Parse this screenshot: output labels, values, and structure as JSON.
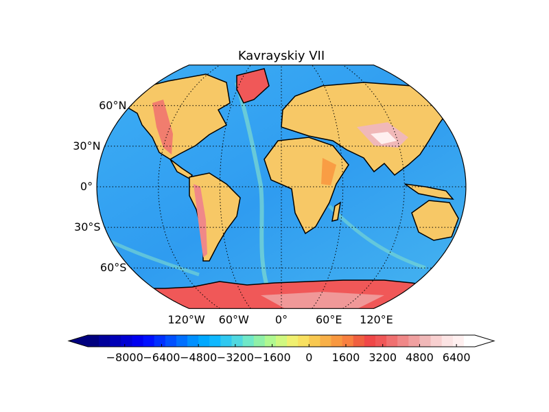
{
  "map": {
    "title": "Kavrayskiy VII",
    "projection": "kavrayskiy-vii",
    "graticule_style": "dotted",
    "lat_labels": [
      "60°N",
      "30°N",
      "0°",
      "30°S",
      "60°S"
    ],
    "lat_values": [
      60,
      30,
      0,
      -30,
      -60
    ],
    "lon_labels": [
      "120°W",
      "60°W",
      "0°",
      "60°E",
      "120°E"
    ],
    "lon_values": [
      -120,
      -60,
      0,
      60,
      120
    ],
    "ocean_color": "#2f9cf0",
    "land_color": "#f7c866",
    "high_terrain_color": "#f25050",
    "ice_color": "#f07070",
    "coastline_color": "#000000"
  },
  "colorbar": {
    "ticks": [
      "−8000",
      "−6400",
      "−4800",
      "−3200",
      "−1600",
      "0",
      "1600",
      "3200",
      "4800",
      "6400"
    ],
    "tick_values": [
      -8000,
      -6400,
      -4800,
      -3200,
      -1600,
      0,
      1600,
      3200,
      4800,
      6400
    ],
    "min": -9600,
    "max": 7200,
    "extend": "both",
    "colors": [
      "#00007f",
      "#00009b",
      "#0000b7",
      "#0000d3",
      "#0000f0",
      "#0010ff",
      "#0030ff",
      "#0050ff",
      "#0070ff",
      "#0090ff",
      "#00a8ff",
      "#10b8ff",
      "#30c8f0",
      "#50d8e0",
      "#70e8c8",
      "#90f0a8",
      "#b0f890",
      "#d0f880",
      "#f0f070",
      "#f8e060",
      "#f8c850",
      "#f8b048",
      "#f89840",
      "#f88040",
      "#f06040",
      "#f04848",
      "#f05858",
      "#f07070",
      "#f08888",
      "#f0a0a0",
      "#f0b8b8",
      "#f8d0d0",
      "#fce4e4",
      "#fff0f0",
      "#ffffff"
    ]
  }
}
